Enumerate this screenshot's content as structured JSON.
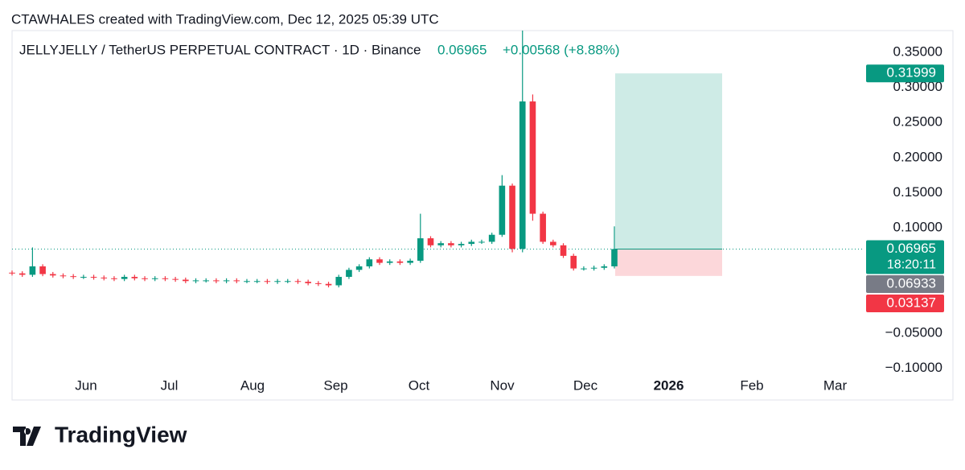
{
  "header": {
    "credit": "CTAWHALES created with TradingView.com, Dec 12, 2025 05:39 UTC",
    "logo": "TradingView"
  },
  "chart_data": {
    "type": "candlestick",
    "symbol": "JELLYJELLY / TetherUS PERPETUAL CONTRACT · 1D · Binance",
    "last": "0.06965",
    "change": "+0.00568 (+8.88%)",
    "up_color": "#089981",
    "down_color": "#f23645",
    "open": [
      0.036,
      0.035,
      0.033,
      0.045,
      0.034,
      0.032,
      0.031,
      0.03,
      0.03,
      0.029,
      0.028,
      0.027,
      0.03,
      0.028,
      0.027,
      0.028,
      0.027,
      0.026,
      0.024,
      0.025,
      0.025,
      0.024,
      0.025,
      0.024,
      0.024,
      0.024,
      0.023,
      0.024,
      0.024,
      0.023,
      0.021,
      0.02,
      0.018,
      0.03,
      0.04,
      0.045,
      0.055,
      0.05,
      0.052,
      0.05,
      0.053,
      0.085,
      0.075,
      0.078,
      0.075,
      0.077,
      0.08,
      0.08,
      0.09,
      0.16,
      0.07,
      0.28,
      0.12,
      0.08,
      0.075,
      0.06,
      0.042,
      0.042,
      0.043,
      0.045
    ],
    "high": [
      0.039,
      0.038,
      0.072,
      0.048,
      0.037,
      0.035,
      0.034,
      0.033,
      0.033,
      0.032,
      0.031,
      0.033,
      0.033,
      0.031,
      0.031,
      0.031,
      0.03,
      0.029,
      0.028,
      0.028,
      0.028,
      0.028,
      0.028,
      0.027,
      0.027,
      0.027,
      0.027,
      0.027,
      0.027,
      0.026,
      0.024,
      0.023,
      0.033,
      0.043,
      0.048,
      0.058,
      0.058,
      0.055,
      0.055,
      0.056,
      0.12,
      0.088,
      0.081,
      0.081,
      0.08,
      0.083,
      0.083,
      0.093,
      0.175,
      0.163,
      0.381,
      0.29,
      0.123,
      0.083,
      0.078,
      0.063,
      0.045,
      0.046,
      0.048,
      0.102
    ],
    "low": [
      0.032,
      0.03,
      0.03,
      0.031,
      0.029,
      0.028,
      0.027,
      0.027,
      0.026,
      0.025,
      0.024,
      0.024,
      0.025,
      0.024,
      0.024,
      0.024,
      0.023,
      0.021,
      0.021,
      0.022,
      0.021,
      0.021,
      0.021,
      0.021,
      0.021,
      0.02,
      0.02,
      0.021,
      0.02,
      0.018,
      0.017,
      0.015,
      0.015,
      0.027,
      0.037,
      0.042,
      0.047,
      0.047,
      0.047,
      0.047,
      0.05,
      0.072,
      0.072,
      0.072,
      0.072,
      0.074,
      0.077,
      0.077,
      0.087,
      0.065,
      0.065,
      0.11,
      0.077,
      0.072,
      0.057,
      0.039,
      0.039,
      0.039,
      0.04,
      0.042
    ],
    "close": [
      0.035,
      0.033,
      0.045,
      0.034,
      0.032,
      0.031,
      0.03,
      0.03,
      0.029,
      0.028,
      0.027,
      0.03,
      0.028,
      0.027,
      0.028,
      0.027,
      0.026,
      0.024,
      0.025,
      0.025,
      0.024,
      0.025,
      0.024,
      0.024,
      0.024,
      0.023,
      0.024,
      0.024,
      0.023,
      0.021,
      0.02,
      0.018,
      0.03,
      0.04,
      0.045,
      0.055,
      0.05,
      0.052,
      0.05,
      0.053,
      0.085,
      0.075,
      0.078,
      0.075,
      0.077,
      0.08,
      0.08,
      0.09,
      0.16,
      0.07,
      0.28,
      0.12,
      0.08,
      0.075,
      0.06,
      0.042,
      0.042,
      0.043,
      0.045,
      0.06965
    ],
    "ylim": [
      -0.103,
      0.381
    ],
    "yticks": [
      {
        "value": 0.35,
        "label": "0.35000"
      },
      {
        "value": 0.3,
        "label": "0.30000"
      },
      {
        "value": 0.25,
        "label": "0.25000"
      },
      {
        "value": 0.2,
        "label": "0.20000"
      },
      {
        "value": 0.15,
        "label": "0.15000"
      },
      {
        "value": 0.1,
        "label": "0.10000"
      },
      {
        "value": -0.05,
        "label": "−0.05000"
      },
      {
        "value": -0.1,
        "label": "−0.10000"
      }
    ],
    "x_labels": [
      "Jun",
      "Jul",
      "Aug",
      "Sep",
      "Oct",
      "Nov",
      "Dec",
      "2026",
      "Feb",
      "Mar"
    ],
    "position": {
      "target": 0.31999,
      "entry": 0.06965,
      "stop": 0.03137
    },
    "price_labels": [
      {
        "value": 0.31999,
        "label": "0.31999",
        "color": "#089981"
      },
      {
        "value": 0.06965,
        "label": "0.06965",
        "color": "#089981",
        "countdown": "18:20:11"
      },
      {
        "value": 0.06933,
        "label": "0.06933",
        "color": "#787b86"
      },
      {
        "value": 0.03137,
        "label": "0.03137",
        "color": "#f23645"
      }
    ]
  }
}
